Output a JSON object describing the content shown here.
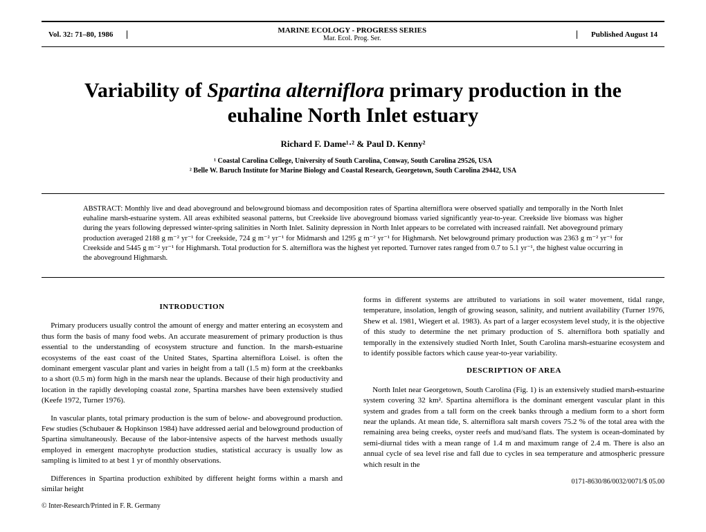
{
  "header": {
    "volume": "Vol. 32: 71–80, 1986",
    "journal_line1": "MARINE ECOLOGY - PROGRESS SERIES",
    "journal_line2": "Mar. Ecol. Prog. Ser.",
    "published": "Published August 14"
  },
  "title_pre": "Variability of ",
  "title_ital": "Spartina alterniflora",
  "title_post": " primary production in the euhaline North Inlet estuary",
  "authors": "Richard F. Dame¹·² & Paul D. Kenny²",
  "affil1": "¹ Coastal Carolina College, University of South Carolina, Conway, South Carolina 29526, USA",
  "affil2": "² Belle W. Baruch Institute for Marine Biology and Coastal Research, Georgetown, South Carolina 29442, USA",
  "abstract": "ABSTRACT: Monthly live and dead aboveground and belowground biomass and decomposition rates of Spartina alterniflora were observed spatially and temporally in the North Inlet euhaline marsh-estuarine system. All areas exhibited seasonal patterns, but Creekside live aboveground biomass varied significantly year-to-year. Creekside live biomass was higher during the years following depressed winter-spring salinities in North Inlet. Salinity depression in North Inlet appears to be correlated with increased rainfall. Net aboveground primary production averaged 2188 g m⁻² yr⁻¹ for Creekside, 724 g m⁻² yr⁻¹ for Midmarsh and 1295 g m⁻² yr⁻¹ for Highmarsh. Net belowground primary production was 2363 g m⁻² yr⁻¹ for Creekside and 5445 g m⁻² yr⁻¹ for Highmarsh. Total production for S. alterniflora was the highest yet reported. Turnover rates ranged from 0.7 to 5.1 yr⁻¹, the highest value occurring in the aboveground Highmarsh.",
  "intro_head": "INTRODUCTION",
  "intro_p1": "Primary producers usually control the amount of energy and matter entering an ecosystem and thus form the basis of many food webs. An accurate measurement of primary production is thus essential to the understanding of ecosystem structure and function. In the marsh-estuarine ecosystems of the east coast of the United States, Spartina alterniflora Loisel. is often the dominant emergent vascular plant and varies in height from a tall (1.5 m) form at the creekbanks to a short (0.5 m) form high in the marsh near the uplands. Because of their high productivity and location in the rapidly developing coastal zone, Spartina marshes have been extensively studied (Keefe 1972, Turner 1976).",
  "intro_p2": "In vascular plants, total primary production is the sum of below- and aboveground production. Few studies (Schubauer & Hopkinson 1984) have addressed aerial and belowground production of Spartina simultaneously. Because of the labor-intensive aspects of the harvest methods usually employed in emergent macrophyte production studies, statistical accuracy is usually low as sampling is limited to at best 1 yr of monthly observations.",
  "intro_p3": "Differences in Spartina production exhibited by different height forms within a marsh and similar height",
  "col2_p1": "forms in different systems are attributed to variations in soil water movement, tidal range, temperature, insolation, length of growing season, salinity, and nutrient availability (Turner 1976, Shew et al. 1981, Wiegert et al. 1983). As part of a larger ecosystem level study, it is the objective of this study to determine the net primary production of S. alterniflora both spatially and temporally in the extensively studied North Inlet, South Carolina marsh-estuarine ecosystem and to identify possible factors which cause year-to-year variability.",
  "desc_head": "DESCRIPTION OF AREA",
  "desc_p1": "North Inlet near Georgetown, South Carolina (Fig. 1) is an extensively studied marsh-estuarine system covering 32 km². Spartina alterniflora is the dominant emergent vascular plant in this system and grades from a tall form on the creek banks through a medium form to a short form near the uplands. At mean tide, S. alterniflora salt marsh covers 75.2 % of the total area with the remaining area being creeks, oyster reefs and mud/sand flats. The system is ocean-dominated by semi-diurnal tides with a mean range of 1.4 m and maximum range of 2.4 m. There is also an annual cycle of sea level rise and fall due to cycles in sea temperature and atmospheric pressure which result in the",
  "footer_left": "© Inter-Research/Printed in F. R. Germany",
  "footer_right": "0171-8630/86/0032/0071/$ 05.00"
}
